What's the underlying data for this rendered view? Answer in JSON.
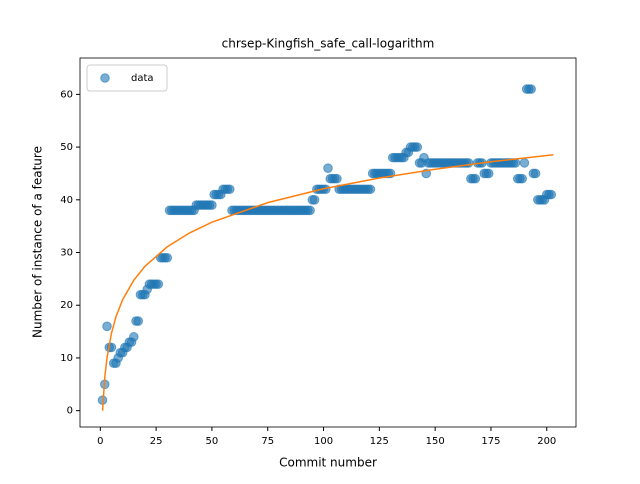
{
  "chart_data": {
    "type": "scatter",
    "title": "chrsep-Kingfish_safe_call-logarithm",
    "x_label": "Commit number",
    "y_label": "Number of instance of a feature",
    "legend": "upper left",
    "xlim": [
      -9.1,
      213.1
    ],
    "ylim": [
      -3.1,
      66.9
    ],
    "xticks": [
      0,
      25,
      50,
      75,
      100,
      125,
      150,
      175,
      200
    ],
    "yticks": [
      0,
      10,
      20,
      30,
      40,
      50,
      60
    ],
    "series": [
      {
        "name": "data",
        "color": "#1f77b4",
        "mode": "markers",
        "x": [
          1,
          2,
          3,
          4,
          5,
          6,
          7,
          8,
          9,
          10,
          11,
          12,
          13,
          14,
          15,
          16,
          17,
          18,
          19,
          20,
          21,
          22,
          23,
          24,
          25,
          26,
          27,
          28,
          29,
          30,
          31,
          32,
          33,
          34,
          35,
          36,
          37,
          38,
          39,
          40,
          41,
          42,
          43,
          44,
          45,
          46,
          47,
          48,
          49,
          50,
          51,
          52,
          53,
          54,
          55,
          56,
          57,
          58,
          59,
          60,
          61,
          62,
          63,
          64,
          65,
          66,
          67,
          68,
          69,
          70,
          71,
          72,
          73,
          74,
          75,
          76,
          77,
          78,
          79,
          80,
          81,
          82,
          83,
          84,
          85,
          86,
          87,
          88,
          89,
          90,
          91,
          92,
          93,
          94,
          95,
          96,
          97,
          98,
          99,
          100,
          101,
          102,
          103,
          104,
          105,
          106,
          107,
          108,
          109,
          110,
          111,
          112,
          113,
          114,
          115,
          116,
          117,
          118,
          119,
          120,
          121,
          122,
          123,
          124,
          125,
          126,
          127,
          128,
          129,
          130,
          131,
          132,
          133,
          134,
          135,
          136,
          137,
          138,
          139,
          140,
          141,
          142,
          143,
          144,
          145,
          146,
          147,
          148,
          149,
          150,
          151,
          152,
          153,
          154,
          155,
          156,
          157,
          158,
          159,
          160,
          161,
          162,
          163,
          164,
          165,
          166,
          167,
          168,
          169,
          170,
          171,
          172,
          173,
          174,
          175,
          176,
          177,
          178,
          179,
          180,
          181,
          182,
          183,
          184,
          185,
          186,
          187,
          188,
          189,
          190,
          191,
          192,
          193,
          194,
          195,
          196,
          197,
          198,
          199,
          200,
          201,
          202
        ],
        "values": [
          2,
          5,
          16,
          12,
          12,
          9,
          9,
          10,
          11,
          11,
          12,
          12,
          13,
          13,
          14,
          17,
          17,
          22,
          22,
          22,
          23,
          24,
          24,
          24,
          24,
          24,
          29,
          29,
          29,
          29,
          38,
          38,
          38,
          38,
          38,
          38,
          38,
          38,
          38,
          38,
          38,
          38,
          39,
          39,
          39,
          39,
          39,
          39,
          39,
          39,
          41,
          41,
          41,
          41,
          42,
          42,
          42,
          42,
          38,
          38,
          38,
          38,
          38,
          38,
          38,
          38,
          38,
          38,
          38,
          38,
          38,
          38,
          38,
          38,
          38,
          38,
          38,
          38,
          38,
          38,
          38,
          38,
          38,
          38,
          38,
          38,
          38,
          38,
          38,
          38,
          38,
          38,
          38,
          38,
          40,
          40,
          42,
          42,
          42,
          42,
          42,
          46,
          44,
          44,
          44,
          44,
          42,
          42,
          42,
          42,
          42,
          42,
          42,
          42,
          42,
          42,
          42,
          42,
          42,
          42,
          42,
          45,
          45,
          45,
          45,
          45,
          45,
          45,
          45,
          45,
          48,
          48,
          48,
          48,
          48,
          48,
          49,
          49,
          50,
          50,
          50,
          50,
          47,
          47,
          48,
          45,
          47,
          47,
          47,
          47,
          47,
          47,
          47,
          47,
          47,
          47,
          47,
          47,
          47,
          47,
          47,
          47,
          47,
          47,
          47,
          44,
          44,
          44,
          47,
          47,
          47,
          45,
          45,
          45,
          47,
          47,
          47,
          47,
          47,
          47,
          47,
          47,
          47,
          47,
          47,
          47,
          44,
          44,
          44,
          47,
          61,
          61,
          61,
          45,
          45,
          40,
          40,
          40,
          40,
          41,
          41,
          41
        ]
      },
      {
        "color": "#ff7f0e",
        "mode": "line",
        "x": [
          1,
          2,
          3,
          5,
          7,
          10,
          15,
          20,
          30,
          40,
          50,
          75,
          100,
          125,
          150,
          175,
          203
        ],
        "values": [
          0,
          6.34,
          10.04,
          14.71,
          17.79,
          21.05,
          24.75,
          27.38,
          31.09,
          33.72,
          35.76,
          39.46,
          42.09,
          44.13,
          45.8,
          47.21,
          48.55
        ]
      }
    ]
  }
}
